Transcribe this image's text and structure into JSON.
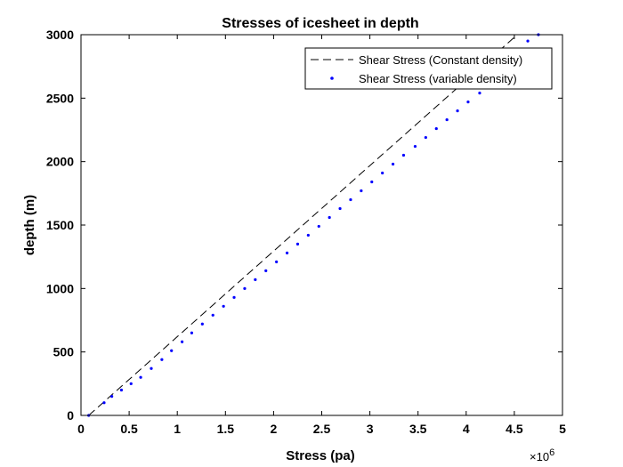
{
  "chart_data": {
    "type": "line",
    "title": "Stresses of icesheet in depth",
    "xlabel": "Stress (pa)",
    "ylabel": "depth (m)",
    "x_exponent_base": "×10",
    "x_exponent_power": "6",
    "xlim": [
      0,
      5
    ],
    "ylim": [
      0,
      3000
    ],
    "xticks": [
      0,
      0.5,
      1,
      1.5,
      2,
      2.5,
      3,
      3.5,
      4,
      4.5,
      5
    ],
    "xtick_labels": [
      "0",
      "0.5",
      "1",
      "1.5",
      "2",
      "2.5",
      "3",
      "3.5",
      "4",
      "4.5",
      "5"
    ],
    "yticks": [
      0,
      500,
      1000,
      1500,
      2000,
      2500,
      3000
    ],
    "ytick_labels": [
      "0",
      "500",
      "1000",
      "1500",
      "2000",
      "2500",
      "3000"
    ],
    "grid": false,
    "legend_position": "top-right",
    "series": [
      {
        "name": "Shear Stress (Constant density)",
        "style": "dashed",
        "color": "#000000",
        "x": [
          0.08,
          4.53
        ],
        "y": [
          0,
          3000
        ]
      },
      {
        "name": "Shear Stress (variable density)",
        "style": "dotted-markers",
        "color": "#0000ff",
        "x": [
          0.08,
          0.24,
          0.32,
          0.42,
          0.52,
          0.62,
          0.73,
          0.84,
          0.94,
          1.05,
          1.15,
          1.26,
          1.37,
          1.48,
          1.59,
          1.7,
          1.81,
          1.92,
          2.03,
          2.14,
          2.25,
          2.36,
          2.47,
          2.58,
          2.69,
          2.8,
          2.91,
          3.02,
          3.13,
          3.24,
          3.35,
          3.47,
          3.58,
          3.69,
          3.8,
          3.91,
          4.02,
          4.14,
          4.25,
          4.36,
          4.47,
          4.64,
          4.75
        ],
        "y": [
          0,
          100,
          150,
          200,
          250,
          300,
          370,
          440,
          510,
          580,
          650,
          720,
          790,
          860,
          930,
          1000,
          1070,
          1140,
          1210,
          1280,
          1350,
          1420,
          1490,
          1560,
          1630,
          1700,
          1770,
          1840,
          1910,
          1980,
          2050,
          2120,
          2190,
          2260,
          2330,
          2400,
          2470,
          2540,
          2610,
          2680,
          2750,
          2950,
          3000
        ]
      }
    ]
  }
}
